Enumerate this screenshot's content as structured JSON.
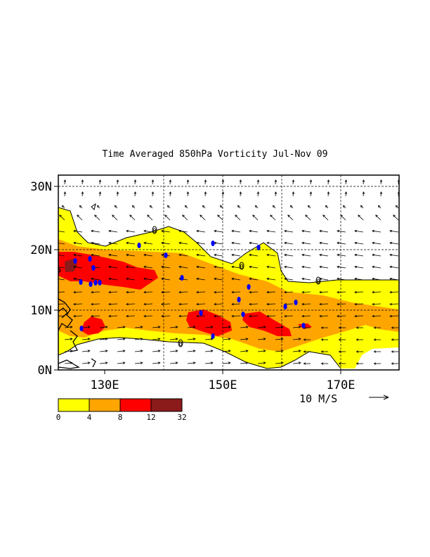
{
  "title": "Time Averaged 850hPa Vorticity  Jul-Nov  09",
  "chart_data": {
    "type": "heatmap",
    "title": "Time Averaged 850hPa Vorticity  Jul-Nov  09",
    "lon_range": [
      122,
      180
    ],
    "lat_range": [
      0,
      31
    ],
    "x_ticks": [
      "130E",
      "150E",
      "170E"
    ],
    "y_ticks": [
      "30N",
      "20N",
      "10N",
      "0N"
    ],
    "grid": true,
    "vector_reference": "10 M/S",
    "colorbar": {
      "levels": [
        "0",
        "4",
        "8",
        "12",
        "32"
      ],
      "colors": [
        "#ffff00",
        "#ffa500",
        "#ff0000",
        "#8b1a1a"
      ]
    },
    "contour_labels": [
      "0",
      "0",
      "0",
      "0"
    ],
    "typhoon_tracks_color": "#0000ff"
  }
}
